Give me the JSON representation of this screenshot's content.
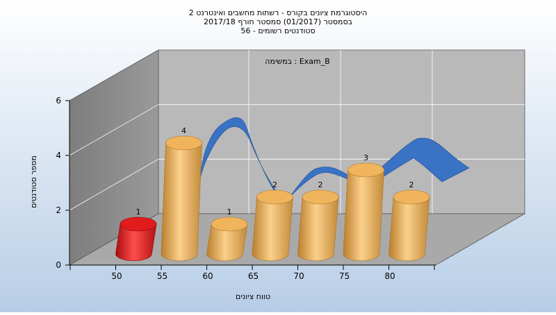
{
  "chart_data": {
    "type": "bar",
    "title_lines": [
      "היסטוגרמת ציונים בקורס - רשתות מחשבים ואינטרנט 2",
      "בסמסטר  (01/2017)  סמסטר חורף  2017/18",
      "סטודנטים רשומים - 56"
    ],
    "subtitle": "במשימה : Exam_B",
    "xlabel": "טווח ציונים",
    "ylabel": "מספר סטודנטים",
    "x_ticks": [
      "50",
      "55",
      "60",
      "65",
      "70",
      "75",
      "80"
    ],
    "y_ticks": [
      "0",
      "2",
      "4",
      "6"
    ],
    "ylim": [
      0,
      6
    ],
    "values": [
      1,
      4,
      1,
      2,
      2,
      3,
      2
    ],
    "value_labels": [
      "1",
      "4",
      "1",
      "2",
      "2",
      "3",
      "2"
    ],
    "highlight_index": 0,
    "colors": {
      "highlight": "#e21b1b",
      "bar": "#f0b45c",
      "curve": "#3a72c4",
      "background_top": "#ffffff",
      "background_bottom": "#b7cde6",
      "wall": "#b9b9b9",
      "floor": "#aaaaaa",
      "side_wall": "#8e8e8e"
    },
    "grid": true
  }
}
